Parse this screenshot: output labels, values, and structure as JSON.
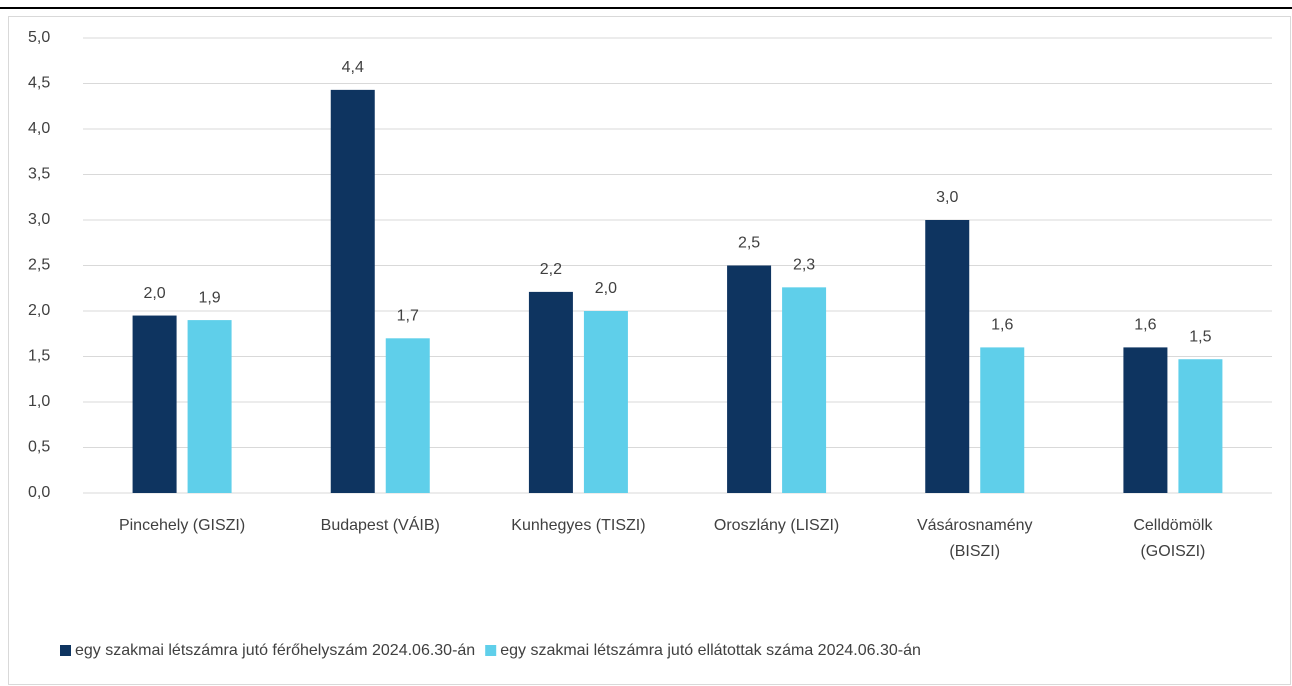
{
  "chart_data": {
    "type": "bar",
    "categories": [
      "Pincehely (GISZI)",
      "Budapest (VÁIB)",
      "Kunhegyes (TISZI)",
      "Oroszlány (LISZI)",
      "Vásárosnamény (BISZI)",
      "Celldömölk (GOISZI)"
    ],
    "series": [
      {
        "name": "egy szakmai létszámra jutó férőhelyszám 2024.06.30-án",
        "color": "#0e3460",
        "values": [
          1.95,
          4.43,
          2.21,
          2.5,
          3.0,
          1.6
        ],
        "value_labels": [
          "2,0",
          "4,4",
          "2,2",
          "2,5",
          "3,0",
          "1,6"
        ]
      },
      {
        "name": "egy szakmai létszámra jutó ellátottak száma 2024.06.30-án",
        "color": "#5fcfea",
        "values": [
          1.9,
          1.7,
          2.0,
          2.26,
          1.6,
          1.47
        ],
        "value_labels": [
          "1,9",
          "1,7",
          "2,0",
          "2,3",
          "1,6",
          "1,5"
        ]
      }
    ],
    "ylim": [
      0,
      5
    ],
    "yticks": [
      {
        "value": 0,
        "label": "0,0"
      },
      {
        "value": 0.5,
        "label": "0,5"
      },
      {
        "value": 1,
        "label": "1,0"
      },
      {
        "value": 1.5,
        "label": "1,5"
      },
      {
        "value": 2,
        "label": "2,0"
      },
      {
        "value": 2.5,
        "label": "2,5"
      },
      {
        "value": 3,
        "label": "3,0"
      },
      {
        "value": 3.5,
        "label": "3,5"
      },
      {
        "value": 4,
        "label": "4,0"
      },
      {
        "value": 4.5,
        "label": "4,5"
      },
      {
        "value": 5,
        "label": "5,0"
      }
    ],
    "grid": true,
    "legend": "bottom"
  }
}
